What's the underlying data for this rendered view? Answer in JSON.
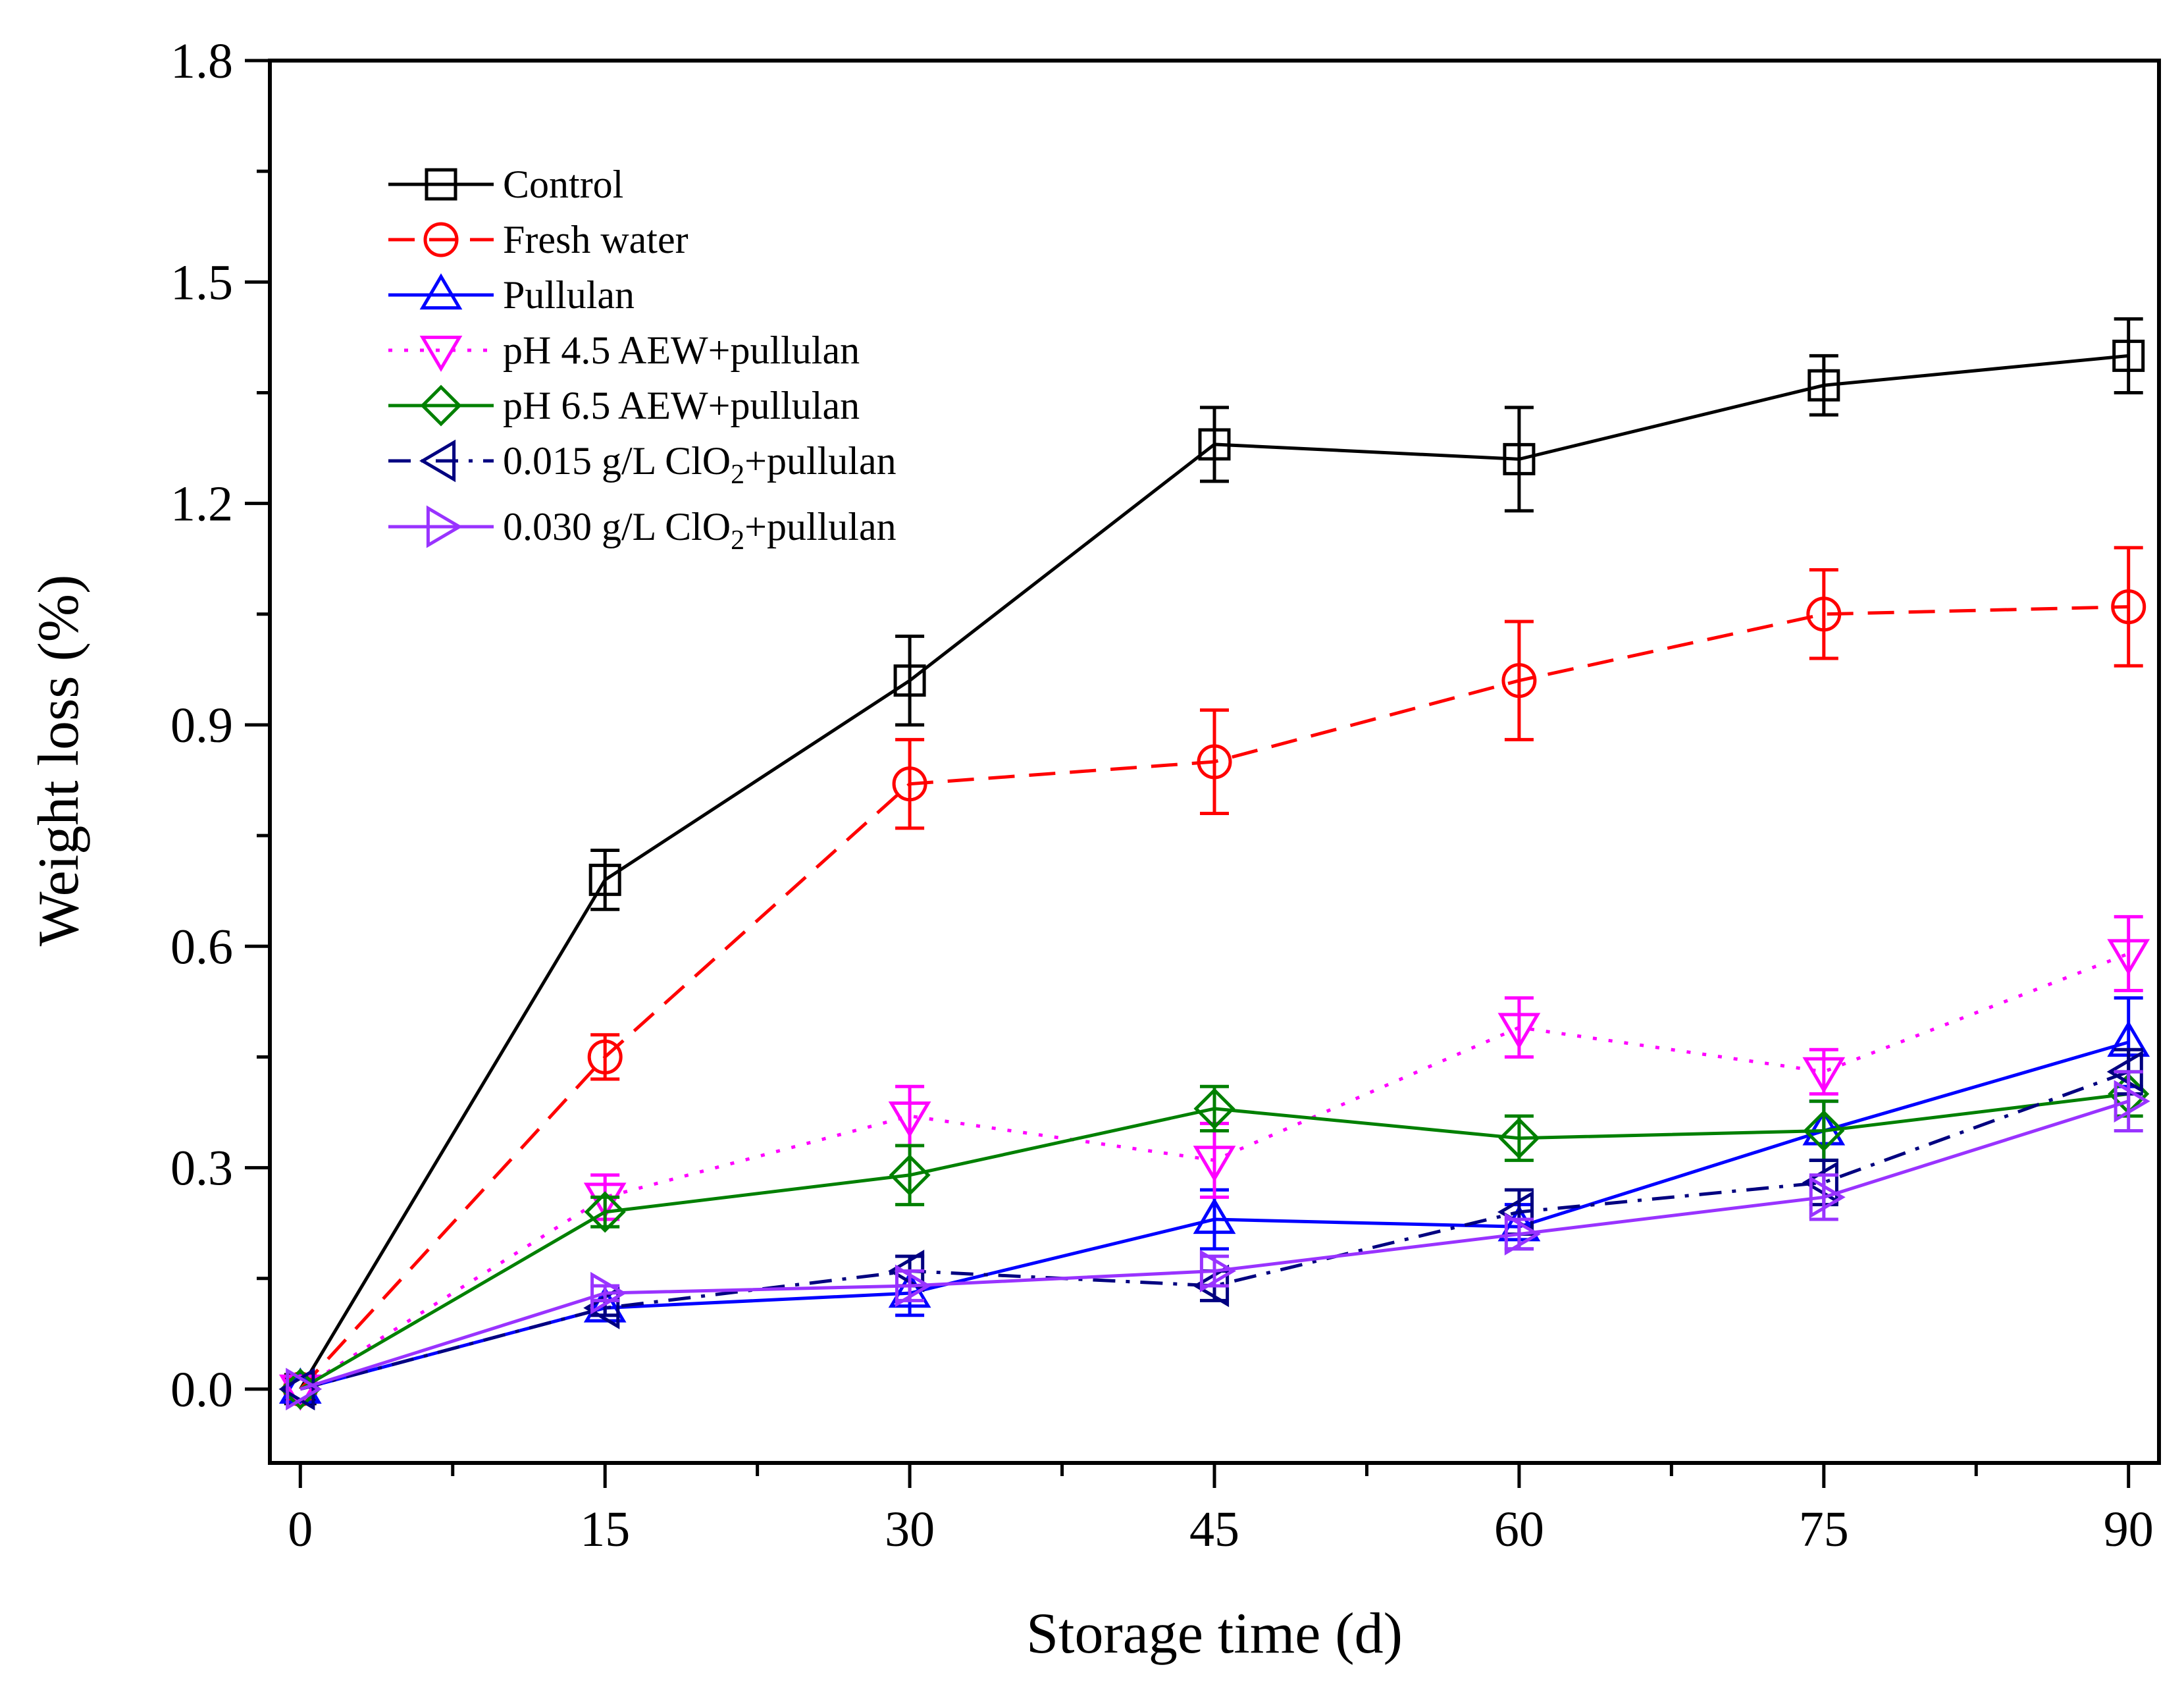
{
  "chart_data": {
    "type": "line",
    "title": "",
    "xlabel": "Storage time (d)",
    "ylabel": "Weight loss (%)",
    "xlim": [
      -1.5,
      91.5
    ],
    "ylim": [
      -0.1,
      1.8
    ],
    "x": [
      0,
      15,
      30,
      45,
      60,
      75,
      90
    ],
    "x_ticks": [
      0,
      15,
      30,
      45,
      60,
      75,
      90
    ],
    "x_tick_labels": [
      "0",
      "15",
      "30",
      "45",
      "60",
      "75",
      "90"
    ],
    "y_ticks": [
      0.0,
      0.3,
      0.6,
      0.9,
      1.2,
      1.5,
      1.8
    ],
    "y_tick_labels": [
      "0.0",
      "0.3",
      "0.6",
      "0.9",
      "1.2",
      "1.5",
      "1.8"
    ],
    "grid": false,
    "legend_position": "top-left",
    "series": [
      {
        "name": "Control",
        "legend": {
          "pre": "Control",
          "sub": "",
          "post": ""
        },
        "color": "#000000",
        "marker": "square",
        "dash": "solid",
        "values": [
          0.0,
          0.69,
          0.96,
          1.28,
          1.26,
          1.36,
          1.4
        ],
        "errors": [
          0.0,
          0.04,
          0.06,
          0.05,
          0.07,
          0.04,
          0.05
        ]
      },
      {
        "name": "Fresh water",
        "legend": {
          "pre": "Fresh water",
          "sub": "",
          "post": ""
        },
        "color": "#ff0000",
        "marker": "circle",
        "dash": "dashed",
        "values": [
          0.0,
          0.45,
          0.82,
          0.85,
          0.96,
          1.05,
          1.06
        ],
        "errors": [
          0.0,
          0.03,
          0.06,
          0.07,
          0.08,
          0.06,
          0.08
        ]
      },
      {
        "name": "Pullulan",
        "legend": {
          "pre": "Pullulan",
          "sub": "",
          "post": ""
        },
        "color": "#0000ff",
        "marker": "triangle-up",
        "dash": "solid",
        "values": [
          0.0,
          0.11,
          0.13,
          0.23,
          0.22,
          0.35,
          0.47
        ],
        "errors": [
          0.0,
          0.01,
          0.03,
          0.04,
          0.03,
          0.04,
          0.06
        ]
      },
      {
        "name": "pH 4.5 AEW+pullulan",
        "legend": {
          "pre": "pH 4.5 AEW+pullulan",
          "sub": "",
          "post": ""
        },
        "color": "#ff00ff",
        "marker": "triangle-down",
        "dash": "dotted",
        "values": [
          0.0,
          0.26,
          0.37,
          0.31,
          0.49,
          0.43,
          0.59
        ],
        "errors": [
          0.0,
          0.03,
          0.04,
          0.05,
          0.04,
          0.03,
          0.05
        ]
      },
      {
        "name": "pH 6.5 AEW+pullulan",
        "legend": {
          "pre": "pH 6.5 AEW+pullulan",
          "sub": "",
          "post": ""
        },
        "color": "#008000",
        "marker": "diamond",
        "dash": "solid",
        "values": [
          0.0,
          0.24,
          0.29,
          0.38,
          0.34,
          0.35,
          0.4
        ],
        "errors": [
          0.0,
          0.02,
          0.04,
          0.03,
          0.03,
          0.04,
          0.03
        ]
      },
      {
        "name": "0.015 g/L ClO2+pullulan",
        "legend": {
          "pre": "0.015 g/L ClO",
          "sub": "2",
          "post": "+pullulan"
        },
        "color": "#000080",
        "marker": "triangle-left",
        "dash": "dashdot",
        "values": [
          0.0,
          0.11,
          0.16,
          0.14,
          0.24,
          0.28,
          0.43
        ],
        "errors": [
          0.0,
          0.01,
          0.02,
          0.02,
          0.03,
          0.03,
          0.03
        ]
      },
      {
        "name": "0.030 g/L ClO2+pullulan",
        "legend": {
          "pre": "0.030 g/L ClO",
          "sub": "2",
          "post": "+pullulan"
        },
        "color": "#9933ff",
        "marker": "triangle-right",
        "dash": "solid",
        "values": [
          0.0,
          0.13,
          0.14,
          0.16,
          0.21,
          0.26,
          0.39
        ],
        "errors": [
          0.0,
          0.01,
          0.02,
          0.02,
          0.02,
          0.03,
          0.04
        ]
      }
    ]
  }
}
